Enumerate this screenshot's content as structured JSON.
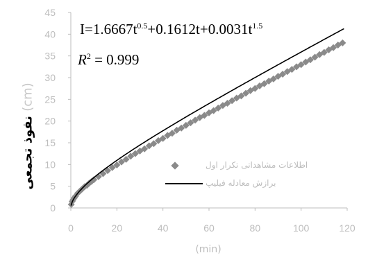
{
  "chart_data": {
    "type": "scatter",
    "title": "",
    "equation": {
      "lhs": "I=1.6667t",
      "e1": "0.5",
      "mid1": "+0.1612t+0.0031t",
      "e2": "1.5"
    },
    "r_squared": {
      "r": "R",
      "sq": "2",
      "rest": " = 0.999"
    },
    "ylabel": "نفوذ تجمعی",
    "ylabel_unit": "(cm)",
    "xlabel": "(min)",
    "xlim": [
      0,
      120
    ],
    "ylim": [
      0,
      45
    ],
    "xticks": [
      "0",
      "20",
      "40",
      "60",
      "80",
      "100",
      "120"
    ],
    "yticks": [
      "0",
      "5",
      "10",
      "15",
      "20",
      "25",
      "30",
      "35",
      "40",
      "45"
    ],
    "grid": false,
    "legend_position": "right",
    "series": [
      {
        "name": "اطلاعات مشاهداتی تکرار اول",
        "kind": "markers",
        "color": "#8a8a8a",
        "x": [
          0.2,
          0.6,
          1,
          1.5,
          2,
          3,
          4,
          5,
          6,
          7,
          8,
          9,
          10,
          12,
          14,
          16,
          18,
          20,
          22,
          24,
          26,
          28,
          30,
          32,
          34,
          36,
          38,
          40,
          42,
          44,
          46,
          48,
          50,
          52,
          54,
          56,
          58,
          60,
          62,
          64,
          66,
          68,
          70,
          72,
          74,
          76,
          78,
          80,
          82,
          84,
          86,
          88,
          90,
          92,
          94,
          96,
          98,
          100,
          102,
          104,
          106,
          108,
          110,
          112,
          114,
          116,
          118
        ],
        "y": [
          0.8,
          1.5,
          1.9,
          2.3,
          2.7,
          3.4,
          3.9,
          4.4,
          4.9,
          5.2,
          5.7,
          6.1,
          6.5,
          7.2,
          7.9,
          8.6,
          9.3,
          9.9,
          10.6,
          11.2,
          11.9,
          12.5,
          13.1,
          13.6,
          14.3,
          14.8,
          15.5,
          16.0,
          16.7,
          17.2,
          17.9,
          18.4,
          19.0,
          19.6,
          20.2,
          20.8,
          21.3,
          21.9,
          22.4,
          23.0,
          23.6,
          24.1,
          24.7,
          25.3,
          25.8,
          26.4,
          27.0,
          27.5,
          28.1,
          28.6,
          29.2,
          29.7,
          30.3,
          30.8,
          31.4,
          31.9,
          32.5,
          33.0,
          33.6,
          34.1,
          34.7,
          35.3,
          35.8,
          36.4,
          36.9,
          37.5,
          38.0
        ]
      },
      {
        "name": "برازش معادله فیلیپ",
        "kind": "line",
        "color": "#000000"
      }
    ],
    "fit_coefficients": [
      1.6667,
      0.1612,
      0.0031
    ]
  }
}
